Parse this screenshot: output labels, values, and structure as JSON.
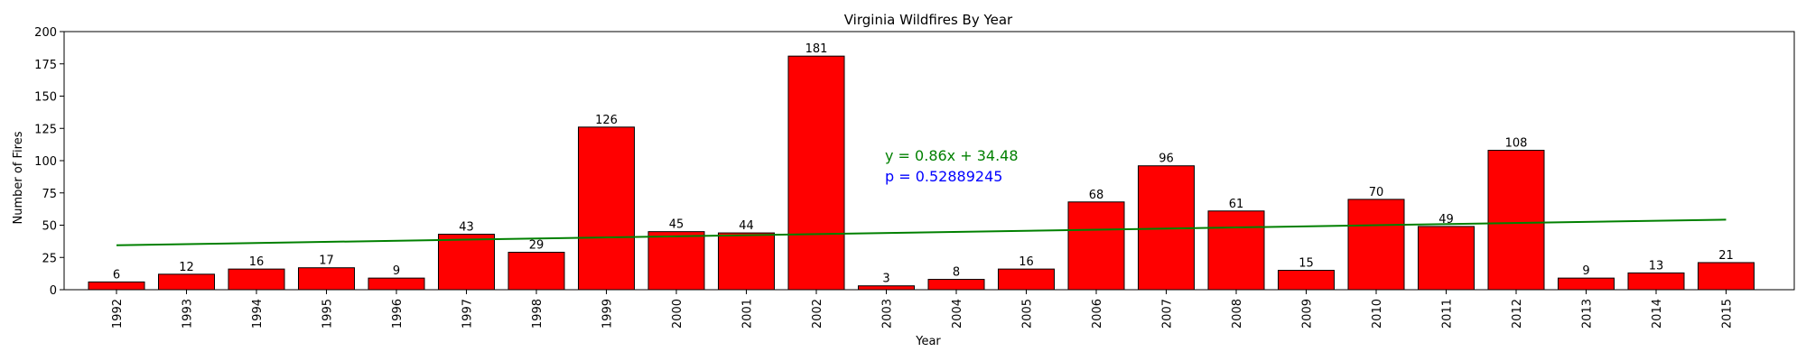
{
  "chart_data": {
    "type": "bar",
    "title": "Virginia Wildfires By Year",
    "xlabel": "Year",
    "ylabel": "Number of Fires",
    "categories": [
      "1992",
      "1993",
      "1994",
      "1995",
      "1996",
      "1997",
      "1998",
      "1999",
      "2000",
      "2001",
      "2002",
      "2003",
      "2004",
      "2005",
      "2006",
      "2007",
      "2008",
      "2009",
      "2010",
      "2011",
      "2012",
      "2013",
      "2014",
      "2015"
    ],
    "values": [
      6,
      12,
      16,
      17,
      9,
      43,
      29,
      126,
      45,
      44,
      181,
      3,
      8,
      16,
      68,
      96,
      61,
      15,
      70,
      49,
      108,
      9,
      13,
      21
    ],
    "ylim": [
      0,
      200
    ],
    "yticks": [
      0,
      25,
      50,
      75,
      100,
      125,
      150,
      175,
      200
    ],
    "trendline": {
      "slope": 0.86,
      "intercept": 34.48
    },
    "annotations": [
      {
        "text": "y = 0.86x + 34.48",
        "color": "#008000"
      },
      {
        "text": "p = 0.52889245",
        "color": "#0000ff"
      }
    ],
    "bar_color": "#ff0000",
    "bar_edge_color": "#000000",
    "trend_color": "#008000",
    "grid": false
  }
}
